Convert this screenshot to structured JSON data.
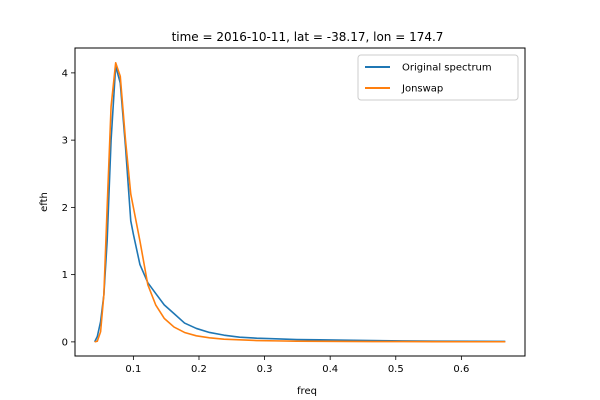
{
  "chart_data": {
    "type": "line",
    "title": "time = 2016-10-11, lat = -38.17, lon = 174.7",
    "xlabel": "freq",
    "ylabel": "efth",
    "xlim": [
      0.011,
      0.697
    ],
    "ylim": [
      -0.21,
      4.37
    ],
    "xticks": [
      0.1,
      0.2,
      0.3,
      0.4,
      0.5,
      0.6
    ],
    "xtick_labels": [
      "0.1",
      "0.2",
      "0.3",
      "0.4",
      "0.5",
      "0.6"
    ],
    "yticks": [
      0,
      1,
      2,
      3,
      4
    ],
    "ytick_labels": [
      "0",
      "1",
      "2",
      "3",
      "4"
    ],
    "grid": false,
    "legend_position": "top-right",
    "colors": {
      "series1": "#1f77b4",
      "series2": "#ff7f0e"
    },
    "series": [
      {
        "name": "Original spectrum",
        "x": [
          0.041,
          0.045,
          0.05,
          0.055,
          0.06,
          0.066,
          0.073,
          0.08,
          0.088,
          0.096,
          0.1,
          0.11,
          0.122,
          0.134,
          0.147,
          0.162,
          0.178,
          0.196,
          0.216,
          0.238,
          0.262,
          0.288,
          0.317,
          0.349,
          0.384,
          0.422,
          0.464,
          0.51,
          0.561,
          0.617,
          0.667
        ],
        "y": [
          0.0,
          0.08,
          0.3,
          0.7,
          1.5,
          3.0,
          4.1,
          3.85,
          2.9,
          1.8,
          1.6,
          1.15,
          0.88,
          0.72,
          0.55,
          0.42,
          0.28,
          0.2,
          0.14,
          0.1,
          0.07,
          0.055,
          0.045,
          0.035,
          0.03,
          0.025,
          0.02,
          0.015,
          0.01,
          0.008,
          0.006
        ]
      },
      {
        "name": "Jonswap",
        "x": [
          0.041,
          0.045,
          0.05,
          0.055,
          0.06,
          0.066,
          0.073,
          0.08,
          0.088,
          0.096,
          0.1,
          0.11,
          0.122,
          0.134,
          0.147,
          0.162,
          0.178,
          0.196,
          0.216,
          0.238,
          0.262,
          0.288,
          0.317,
          0.349,
          0.384,
          0.422,
          0.464,
          0.51,
          0.561,
          0.617,
          0.667
        ],
        "y": [
          0.0,
          0.01,
          0.15,
          0.7,
          2.0,
          3.5,
          4.15,
          3.95,
          3.0,
          2.2,
          2.0,
          1.5,
          0.85,
          0.55,
          0.35,
          0.22,
          0.14,
          0.09,
          0.06,
          0.04,
          0.03,
          0.02,
          0.015,
          0.01,
          0.008,
          0.006,
          0.005,
          0.004,
          0.003,
          0.002,
          0.002
        ]
      }
    ]
  }
}
